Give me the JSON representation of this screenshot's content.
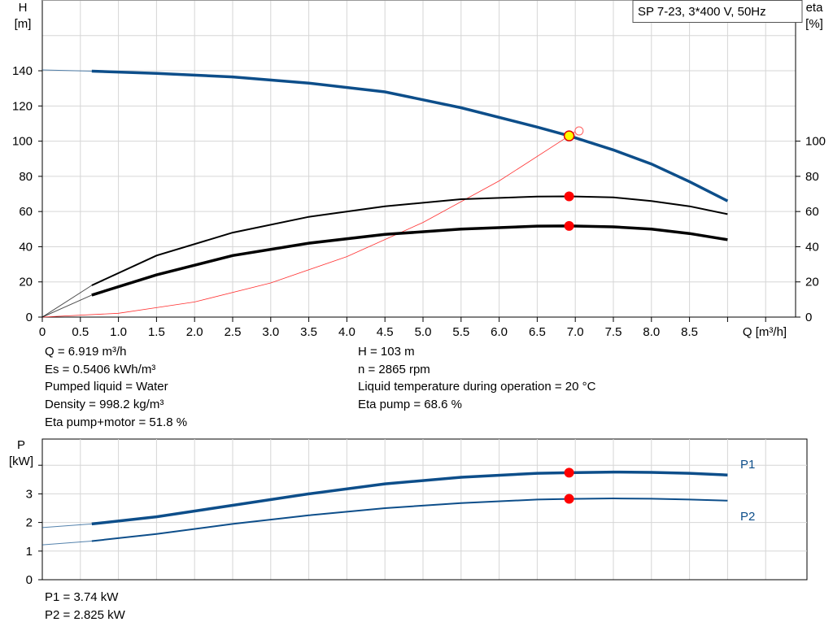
{
  "title": "SP 7-23, 3*400 V, 50Hz",
  "chart_data": [
    {
      "type": "line",
      "xlabel": "Q [m³/h]",
      "ylabel_left": "H\n[m]",
      "ylabel_right": "eta\n[%]",
      "xlim": [
        0,
        9.9
      ],
      "ylim": [
        0,
        180
      ],
      "x_ticks": [
        "0",
        "0.5",
        "1.0",
        "1.5",
        "2.0",
        "2.5",
        "3.0",
        "3.5",
        "4.0",
        "4.5",
        "5.0",
        "5.5",
        "6.0",
        "6.5",
        "7.0",
        "7.5",
        "8.0",
        "8.5"
      ],
      "y_ticks_left": [
        "0",
        "20",
        "40",
        "60",
        "80",
        "100",
        "120",
        "140"
      ],
      "y_ticks_right": [
        "0",
        "20",
        "40",
        "60",
        "80",
        "100"
      ],
      "grid": true,
      "series": [
        {
          "id": "H",
          "color": "#0d4e8a",
          "x": [
            0,
            0.65,
            1.5,
            2.5,
            3.5,
            4.5,
            5.5,
            6.5,
            6.919,
            7.5,
            8.0,
            8.5,
            9.0
          ],
          "y": [
            140.5,
            139.8,
            138.5,
            136.5,
            133,
            128,
            119,
            108,
            103,
            95,
            87,
            77,
            66
          ]
        },
        {
          "id": "eta_pump",
          "color": "#000000",
          "x": [
            0,
            0.65,
            1.5,
            2.5,
            3.5,
            4.5,
            5.5,
            6.5,
            6.919,
            7.5,
            8.0,
            8.5,
            9.0
          ],
          "y": [
            0,
            18,
            35,
            48,
            57,
            63,
            67,
            68.5,
            68.6,
            68,
            66,
            63,
            58.5
          ]
        },
        {
          "id": "eta_pump_motor",
          "color": "#000000",
          "x": [
            0,
            0.65,
            1.5,
            2.5,
            3.5,
            4.5,
            5.5,
            6.5,
            6.919,
            7.5,
            8.0,
            8.5,
            9.0
          ],
          "y": [
            0,
            12.5,
            24,
            35,
            42,
            47,
            50,
            51.7,
            51.8,
            51.3,
            50,
            47.5,
            44
          ]
        },
        {
          "id": "system",
          "color": "#ff3030",
          "x": [
            0,
            1,
            2,
            3,
            4,
            5,
            6,
            6.919,
            7.0
          ],
          "y": [
            0,
            2.15,
            8.6,
            19.4,
            34.4,
            53.8,
            77.4,
            103,
            105.5
          ]
        }
      ],
      "duty_point": {
        "Q": 6.919,
        "H": 103,
        "eta_pump": 68.6,
        "eta_pump_motor": 51.8
      }
    },
    {
      "type": "line",
      "ylabel": "P\n[kW]",
      "xlim": [
        0,
        9.9
      ],
      "ylim": [
        0,
        5
      ],
      "y_ticks": [
        "0",
        "1",
        "2",
        "3"
      ],
      "grid": true,
      "series": [
        {
          "name": "P1",
          "color": "#0d4e8a",
          "x": [
            0,
            0.65,
            1.5,
            2.5,
            3.5,
            4.5,
            5.5,
            6.5,
            6.919,
            7.5,
            8.0,
            8.5,
            9.0
          ],
          "y": [
            1.82,
            1.95,
            2.2,
            2.6,
            3.0,
            3.35,
            3.58,
            3.72,
            3.74,
            3.76,
            3.75,
            3.72,
            3.66
          ]
        },
        {
          "name": "P2",
          "color": "#0d4e8a",
          "x": [
            0,
            0.65,
            1.5,
            2.5,
            3.5,
            4.5,
            5.5,
            6.5,
            6.919,
            7.5,
            8.0,
            8.5,
            9.0
          ],
          "y": [
            1.22,
            1.35,
            1.6,
            1.95,
            2.25,
            2.5,
            2.68,
            2.8,
            2.825,
            2.84,
            2.83,
            2.8,
            2.76
          ]
        }
      ],
      "duty_point": {
        "Q": 6.919,
        "P1": 3.74,
        "P2": 2.825
      }
    }
  ],
  "info": {
    "left": [
      "Q = 6.919 m³/h",
      "Es = 0.5406 kWh/m³",
      "Pumped liquid = Water",
      "Density = 998.2 kg/m³",
      "Eta pump+motor = 51.8 %"
    ],
    "right": [
      "H = 103 m",
      "n = 2865 rpm",
      "Liquid temperature during operation = 20 °C",
      "Eta pump = 68.6 %"
    ],
    "power": [
      "P1 = 3.74 kW",
      "P2 = 2.825 kW"
    ]
  }
}
